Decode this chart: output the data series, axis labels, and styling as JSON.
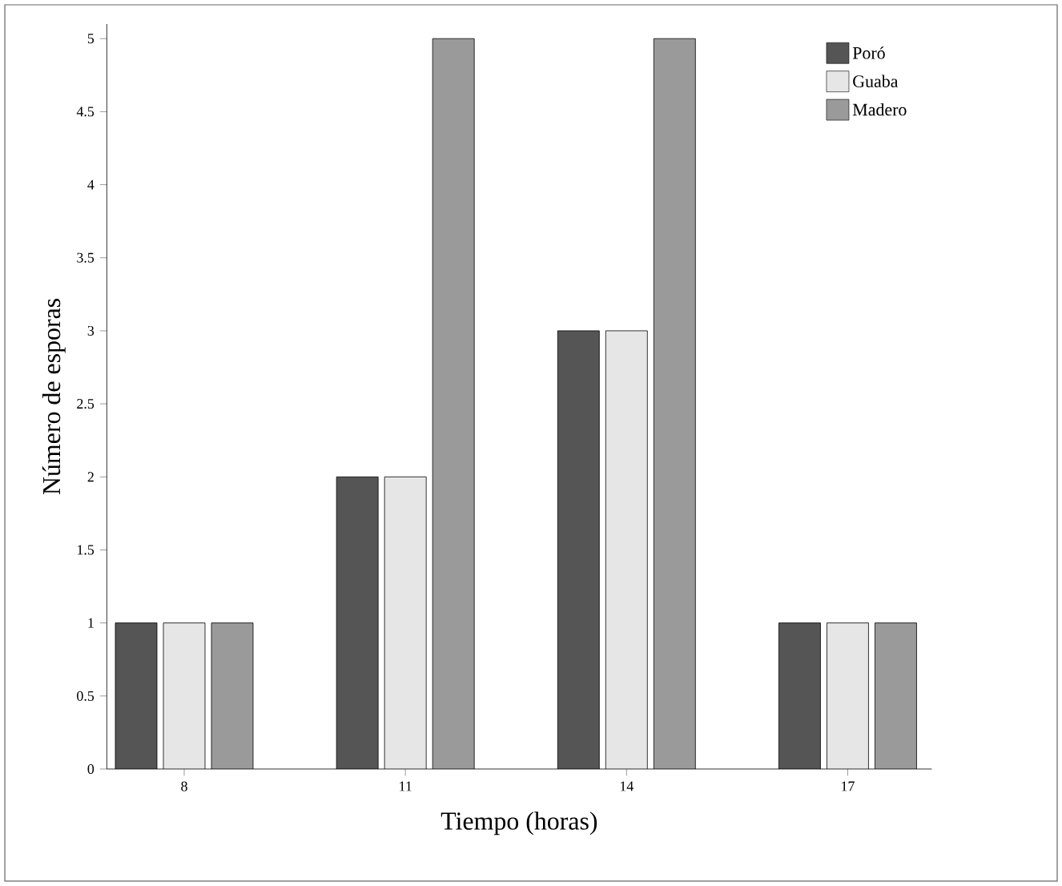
{
  "chart_data": {
    "type": "bar",
    "xlabel": "Tiempo (horas)",
    "ylabel": "Número de esporas",
    "categories": [
      "8",
      "11",
      "14",
      "17"
    ],
    "series": [
      {
        "name": "Poró",
        "color": "#555555",
        "values": [
          1,
          2,
          3,
          1
        ]
      },
      {
        "name": "Guaba",
        "color": "#e6e6e6",
        "values": [
          1,
          2,
          3,
          1
        ]
      },
      {
        "name": "Madero",
        "color": "#9a9a9a",
        "values": [
          1,
          5,
          5,
          1
        ]
      }
    ],
    "ylim": [
      0,
      5.1
    ],
    "yticks": [
      0,
      0.5,
      1,
      1.5,
      2,
      2.5,
      3,
      3.5,
      4,
      4.5,
      5
    ],
    "grid": false,
    "legend": "top right"
  }
}
